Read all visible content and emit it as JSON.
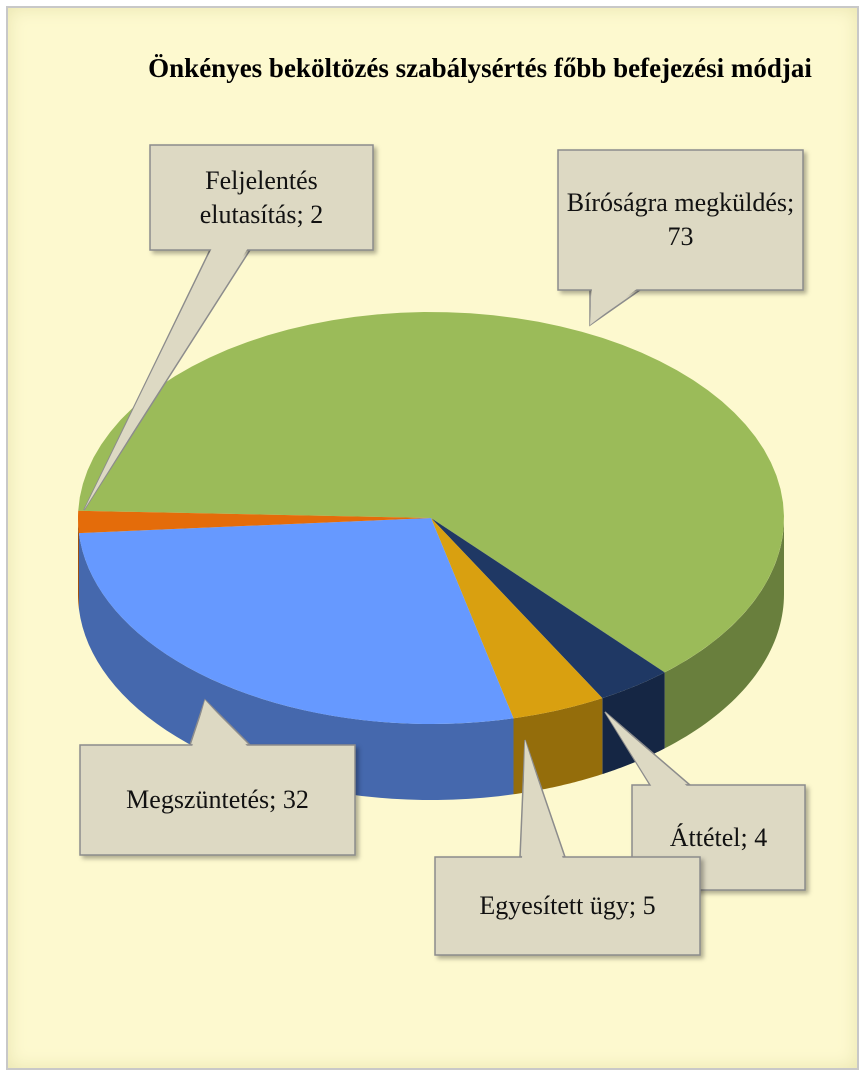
{
  "chart_data": {
    "type": "pie3d",
    "title": "Önkényes beköltözés szabálysértés főbb befejezési módjai",
    "values": [
      73,
      4,
      5,
      32,
      2
    ],
    "value_labels": [
      "Bíróságra megküldés; 73",
      "Áttétel; 4",
      "Egyesített ügy; 5",
      "Megszüntetés; 32",
      "Feljelentés elutasítás; 2"
    ],
    "colors": [
      "#9bbb59",
      "#1f3864",
      "#d9a010",
      "#6699ff",
      "#e46c0a"
    ]
  }
}
